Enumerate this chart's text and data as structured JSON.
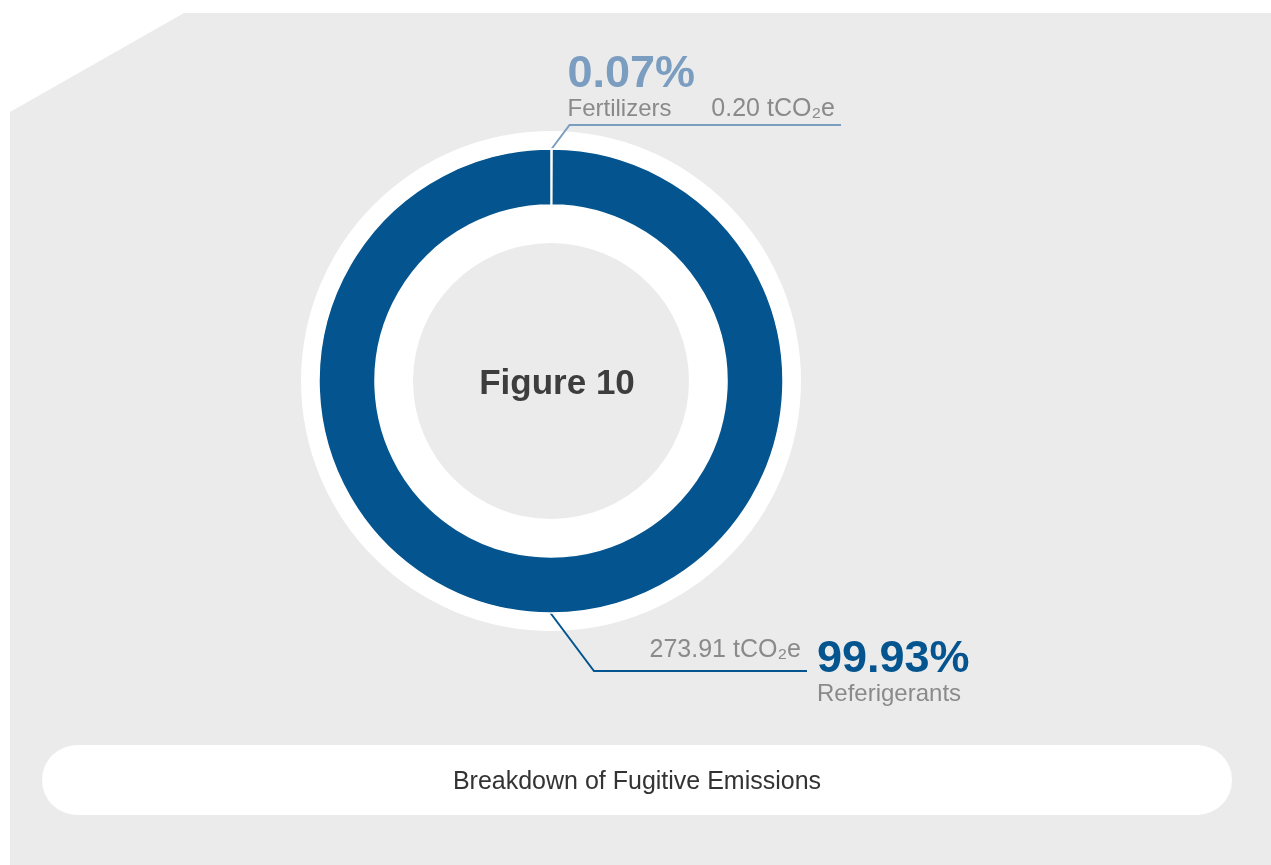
{
  "chart_data": {
    "type": "donut",
    "title": "Figure 10",
    "categories": [
      "Fertilizers",
      "Referigerants"
    ],
    "values": [
      0.2,
      273.91
    ],
    "colors": [
      "#7b9dc0",
      "#04558f"
    ],
    "value_labels": [
      "0.20 tCO₂e",
      "273.91 tCO₂e"
    ],
    "annotations": [
      {
        "text": "0.07%",
        "x": "Fertilizers"
      },
      {
        "text": "99.93%",
        "x": "Referigerants"
      },
      "Breakdown of Fugitive Emissions"
    ]
  }
}
